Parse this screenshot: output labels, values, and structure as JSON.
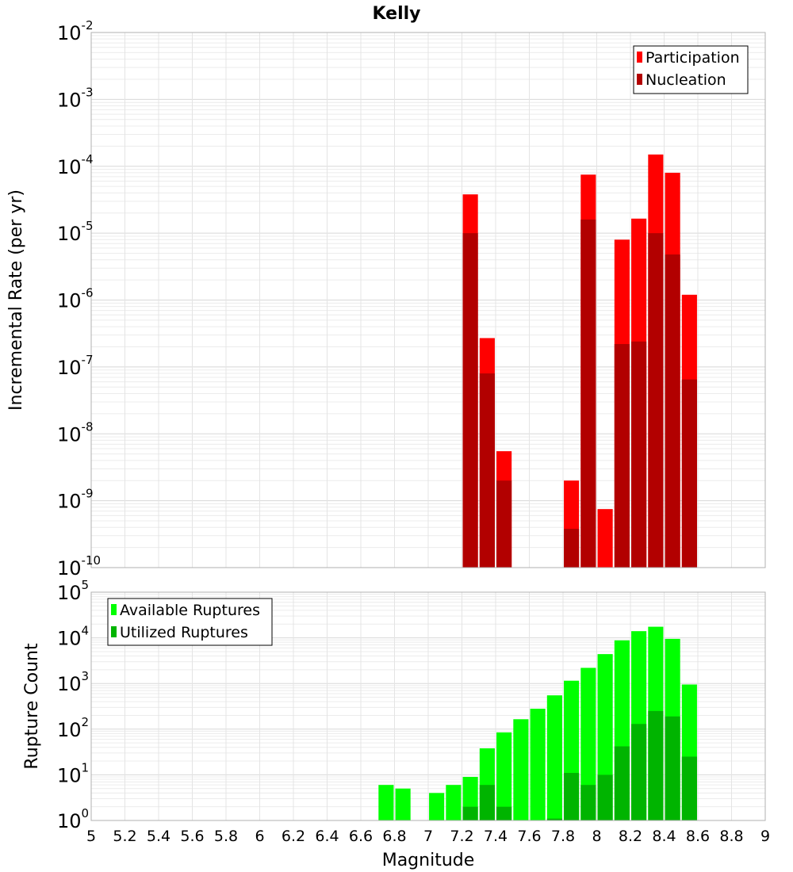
{
  "title": "Kelly",
  "xlabel": "Magnitude",
  "chart_data": [
    {
      "type": "bar",
      "title": "Kelly",
      "xlabel": "Magnitude",
      "ylabel": "Incremental Rate (per yr)",
      "yscale": "log",
      "xlim": [
        5,
        9
      ],
      "ylim": [
        1e-10,
        0.01
      ],
      "x_ticks": [
        "5",
        "5.2",
        "5.4",
        "5.6",
        "5.8",
        "6",
        "6.2",
        "6.4",
        "6.6",
        "6.8",
        "7",
        "7.2",
        "7.4",
        "7.6",
        "7.8",
        "8",
        "8.2",
        "8.4",
        "8.6",
        "8.8",
        "9"
      ],
      "y_tick_exponents": [
        "-10",
        "-9",
        "-8",
        "-7",
        "-6",
        "-5",
        "-4",
        "-3",
        "-2"
      ],
      "legend_position": "top-right",
      "grid": true,
      "series": [
        {
          "name": "Participation",
          "color": "#ff0000",
          "points": [
            {
              "x": 7.25,
              "y": 3.8e-05
            },
            {
              "x": 7.35,
              "y": 2.7e-07
            },
            {
              "x": 7.45,
              "y": 5.5e-09
            },
            {
              "x": 7.85,
              "y": 2e-09
            },
            {
              "x": 7.95,
              "y": 7.5e-05
            },
            {
              "x": 8.05,
              "y": 7.5e-10
            },
            {
              "x": 8.15,
              "y": 8e-06
            },
            {
              "x": 8.25,
              "y": 1.65e-05
            },
            {
              "x": 8.35,
              "y": 0.00015
            },
            {
              "x": 8.45,
              "y": 8e-05
            },
            {
              "x": 8.55,
              "y": 1.2e-06
            }
          ]
        },
        {
          "name": "Nucleation",
          "color": "#b20000",
          "points": [
            {
              "x": 7.25,
              "y": 1e-05
            },
            {
              "x": 7.35,
              "y": 8e-08
            },
            {
              "x": 7.45,
              "y": 2e-09
            },
            {
              "x": 7.85,
              "y": 3.8e-10
            },
            {
              "x": 7.95,
              "y": 1.6e-05
            },
            {
              "x": 8.15,
              "y": 2.2e-07
            },
            {
              "x": 8.25,
              "y": 2.4e-07
            },
            {
              "x": 8.35,
              "y": 1e-05
            },
            {
              "x": 8.45,
              "y": 4.8e-06
            },
            {
              "x": 8.55,
              "y": 6.5e-08
            }
          ]
        }
      ]
    },
    {
      "type": "bar",
      "xlabel": "Magnitude",
      "ylabel": "Rupture Count",
      "yscale": "log",
      "xlim": [
        5,
        9
      ],
      "ylim": [
        1,
        100000
      ],
      "x_ticks": [
        "5",
        "5.2",
        "5.4",
        "5.6",
        "5.8",
        "6",
        "6.2",
        "6.4",
        "6.6",
        "6.8",
        "7",
        "7.2",
        "7.4",
        "7.6",
        "7.8",
        "8",
        "8.2",
        "8.4",
        "8.6",
        "8.8",
        "9"
      ],
      "y_tick_exponents": [
        "0",
        "1",
        "2",
        "3",
        "4",
        "5"
      ],
      "legend_position": "top-left",
      "grid": true,
      "series": [
        {
          "name": "Available Ruptures",
          "color": "#00ff00",
          "points": [
            {
              "x": 6.75,
              "y": 6
            },
            {
              "x": 6.85,
              "y": 5
            },
            {
              "x": 7.05,
              "y": 4
            },
            {
              "x": 7.15,
              "y": 6
            },
            {
              "x": 7.25,
              "y": 9
            },
            {
              "x": 7.35,
              "y": 38
            },
            {
              "x": 7.45,
              "y": 85
            },
            {
              "x": 7.55,
              "y": 165
            },
            {
              "x": 7.65,
              "y": 280
            },
            {
              "x": 7.75,
              "y": 550
            },
            {
              "x": 7.85,
              "y": 1150
            },
            {
              "x": 7.95,
              "y": 2200
            },
            {
              "x": 8.05,
              "y": 4400
            },
            {
              "x": 8.15,
              "y": 8800
            },
            {
              "x": 8.25,
              "y": 14000
            },
            {
              "x": 8.35,
              "y": 17500
            },
            {
              "x": 8.45,
              "y": 9500
            },
            {
              "x": 8.55,
              "y": 950
            }
          ]
        },
        {
          "name": "Utilized Ruptures",
          "color": "#00b400",
          "points": [
            {
              "x": 7.25,
              "y": 2
            },
            {
              "x": 7.35,
              "y": 6
            },
            {
              "x": 7.45,
              "y": 2
            },
            {
              "x": 7.75,
              "y": 1.1
            },
            {
              "x": 7.85,
              "y": 11
            },
            {
              "x": 7.95,
              "y": 6
            },
            {
              "x": 8.05,
              "y": 10
            },
            {
              "x": 8.15,
              "y": 42
            },
            {
              "x": 8.25,
              "y": 130
            },
            {
              "x": 8.35,
              "y": 250
            },
            {
              "x": 8.45,
              "y": 190
            },
            {
              "x": 8.55,
              "y": 25
            }
          ]
        }
      ]
    }
  ]
}
